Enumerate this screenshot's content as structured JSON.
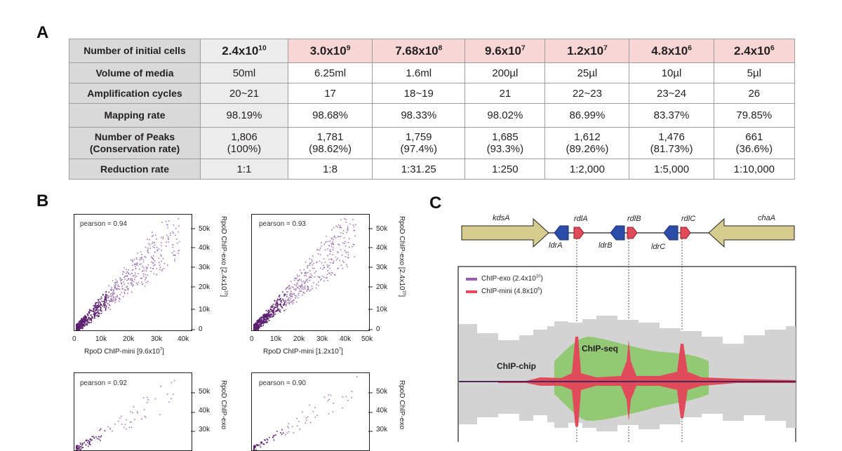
{
  "panels": {
    "a": "A",
    "b": "B",
    "c": "C"
  },
  "table": {
    "header_label": "Number of initial cells",
    "initial_cells": [
      {
        "mant": "2.4x10",
        "exp": "10"
      },
      {
        "mant": "3.0x10",
        "exp": "9"
      },
      {
        "mant": "7.68x10",
        "exp": "8"
      },
      {
        "mant": "9.6x10",
        "exp": "7"
      },
      {
        "mant": "1.2x10",
        "exp": "7"
      },
      {
        "mant": "4.8x10",
        "exp": "6"
      },
      {
        "mant": "2.4x10",
        "exp": "6"
      }
    ],
    "rows": [
      {
        "label": "Volume of media",
        "values": [
          "50ml",
          "6.25ml",
          "1.6ml",
          "200µl",
          "25µl",
          "10µl",
          "5µl"
        ]
      },
      {
        "label": "Amplification cycles",
        "values": [
          "20~21",
          "17",
          "18~19",
          "21",
          "22~23",
          "23~24",
          "26"
        ]
      },
      {
        "label": "Mapping rate",
        "values": [
          "98.19%",
          "98.68%",
          "98.33%",
          "98.02%",
          "86.99%",
          "83.37%",
          "79.85%"
        ]
      }
    ],
    "peaks_label_1": "Number of Peaks",
    "peaks_label_2": "(Conservation rate)",
    "peaks": [
      {
        "n": "1,806",
        "r": "(100%)"
      },
      {
        "n": "1,781",
        "r": "(98.62%)"
      },
      {
        "n": "1,759",
        "r": "(97.4%)"
      },
      {
        "n": "1,685",
        "r": "(93.3%)"
      },
      {
        "n": "1,612",
        "r": "(89.26%)"
      },
      {
        "n": "1,476",
        "r": "(81.73%)"
      },
      {
        "n": "661",
        "r": "(36.6%)"
      }
    ],
    "reduction_label": "Reduction rate",
    "reduction": [
      "1:1",
      "1:8",
      "1:31.25",
      "1:250",
      "1:2,000",
      "1:5,000",
      "1:10,000"
    ]
  },
  "scatter": {
    "y_ticks": [
      "50k",
      "40k",
      "30k",
      "20k",
      "10k",
      "0"
    ],
    "x_ticks_1": [
      "0",
      "10k",
      "20k",
      "30k",
      "40k"
    ],
    "x_ticks_2": [
      "0",
      "10k",
      "20k",
      "30k",
      "40k",
      "50k"
    ],
    "plots": [
      {
        "pearson": "pearson = 0.94",
        "xlabel_main": "RpoD ChIP-mini [9.6x10",
        "xlabel_exp": "7",
        "xlabel_end": "]",
        "ylabel_main": "RpoD ChIP-exo [2.4x10",
        "ylabel_exp": "10",
        "ylabel_end": "]"
      },
      {
        "pearson": "pearson = 0.93",
        "xlabel_main": "RpoD ChIP-mini [1.2x10",
        "xlabel_exp": "7",
        "xlabel_end": "]",
        "ylabel_main": "RpoD ChIP-exo [2.4x10",
        "ylabel_exp": "10",
        "ylabel_end": "]"
      },
      {
        "pearson": "pearson = 0.92",
        "ylabel_main": "RpoD ChIP-exo"
      },
      {
        "pearson": "pearson = 0.90",
        "ylabel_main": "RpoD ChIP-exo"
      }
    ]
  },
  "genome": {
    "genes": [
      "kdsA",
      "rdlA",
      "rdlB",
      "rdlC",
      "chaA",
      "ldrA",
      "ldrB",
      "ldrC"
    ],
    "legend": [
      {
        "main": "ChIP-exo (2.4x10",
        "exp": "10",
        "end": ")"
      },
      {
        "main": "ChIP-mini (4.8x10",
        "exp": "6",
        "end": ")"
      }
    ],
    "labels": {
      "chip_seq": "ChIP-seq",
      "chip_chip": "ChIP-chip"
    }
  },
  "colors": {
    "pink": "#f9d6d6",
    "purple": "#5b1f6e",
    "green": "#8cc86a",
    "red": "#e04a5a",
    "gene_body": "#d6cc8e"
  }
}
